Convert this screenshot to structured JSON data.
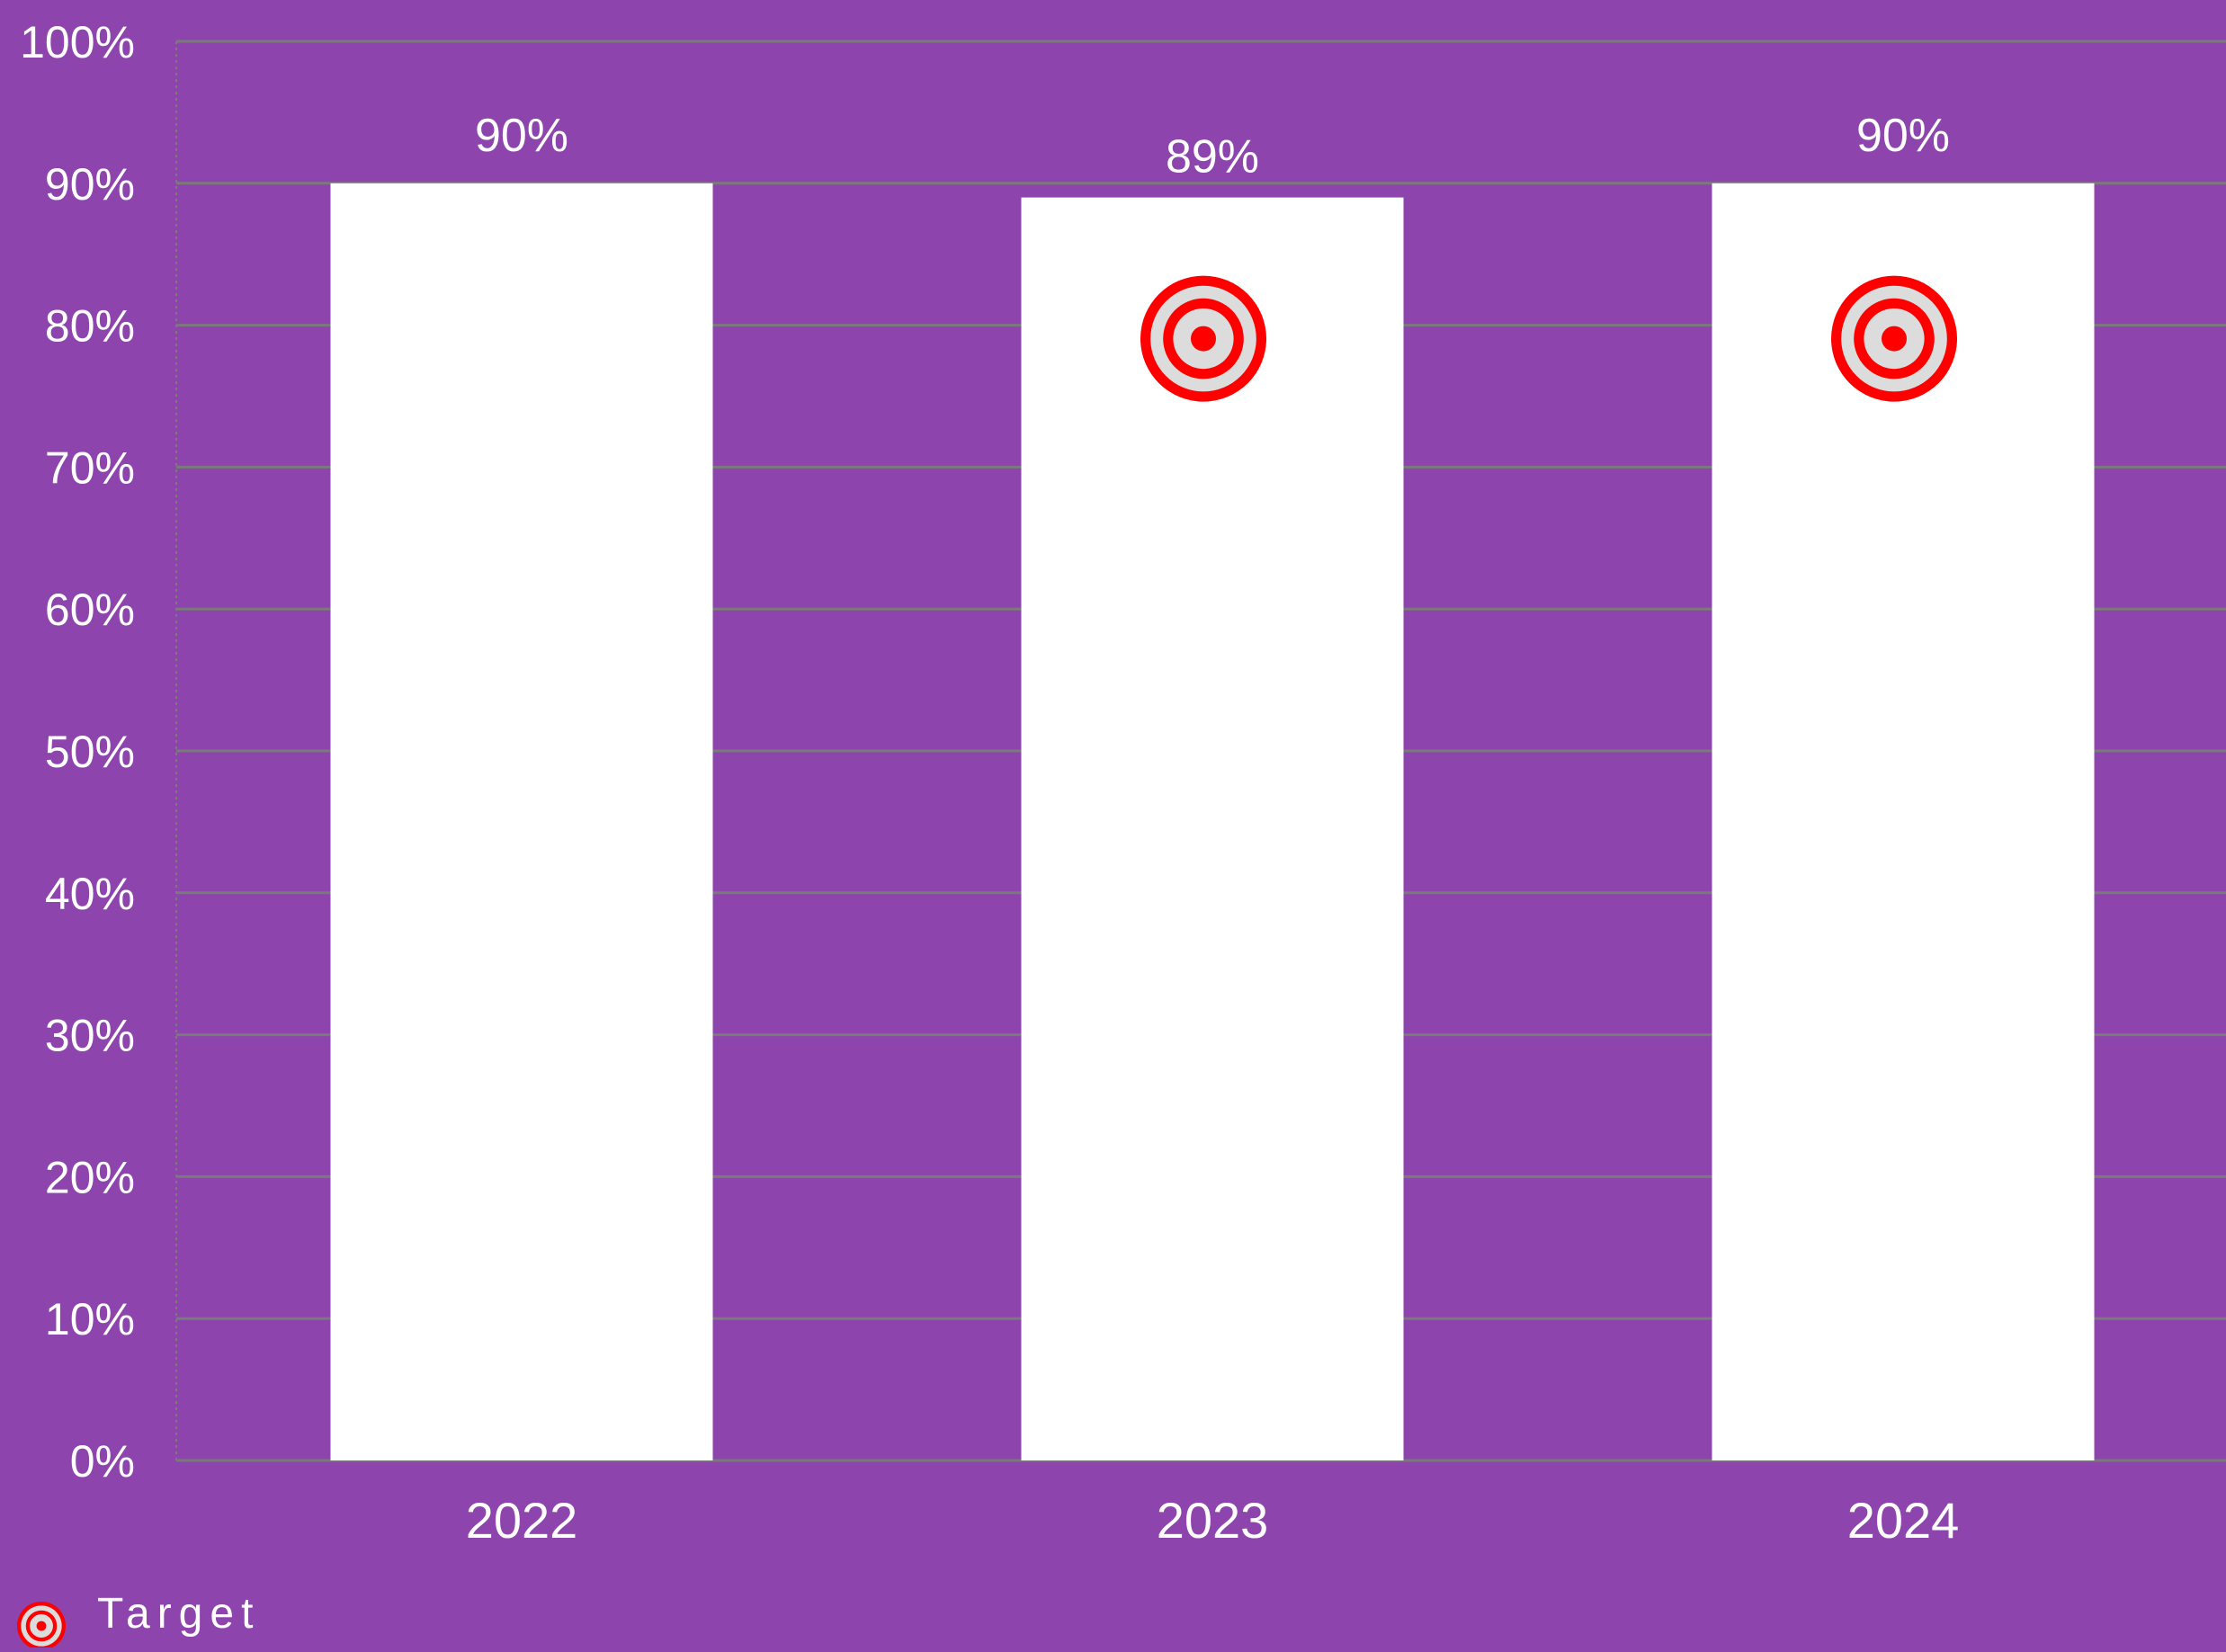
{
  "colors": {
    "background": "#8e44ad",
    "bar": "#ffffff",
    "gridline": "#7a7a7a",
    "text": "#ffffff",
    "target_ring": "#ff0000",
    "target_inner": "#dcdcdc"
  },
  "legend": {
    "icon": "target-icon",
    "label": "Target"
  },
  "chart_data": {
    "type": "bar",
    "categories": [
      "2022",
      "2023",
      "2024"
    ],
    "series": [
      {
        "values": [
          90,
          89,
          90
        ],
        "data_labels": [
          "90%",
          "89%",
          "90%"
        ]
      },
      {
        "name": "Target",
        "marker": "target-icon",
        "values": [
          null,
          80,
          80
        ]
      }
    ],
    "ylim": [
      0,
      100
    ],
    "yticks": [
      0,
      10,
      20,
      30,
      40,
      50,
      60,
      70,
      80,
      90,
      100
    ],
    "ytick_labels": [
      "0%",
      "10%",
      "20%",
      "30%",
      "40%",
      "50%",
      "60%",
      "70%",
      "80%",
      "90%",
      "100%"
    ],
    "grid": true,
    "legend_position": "bottom-left"
  }
}
